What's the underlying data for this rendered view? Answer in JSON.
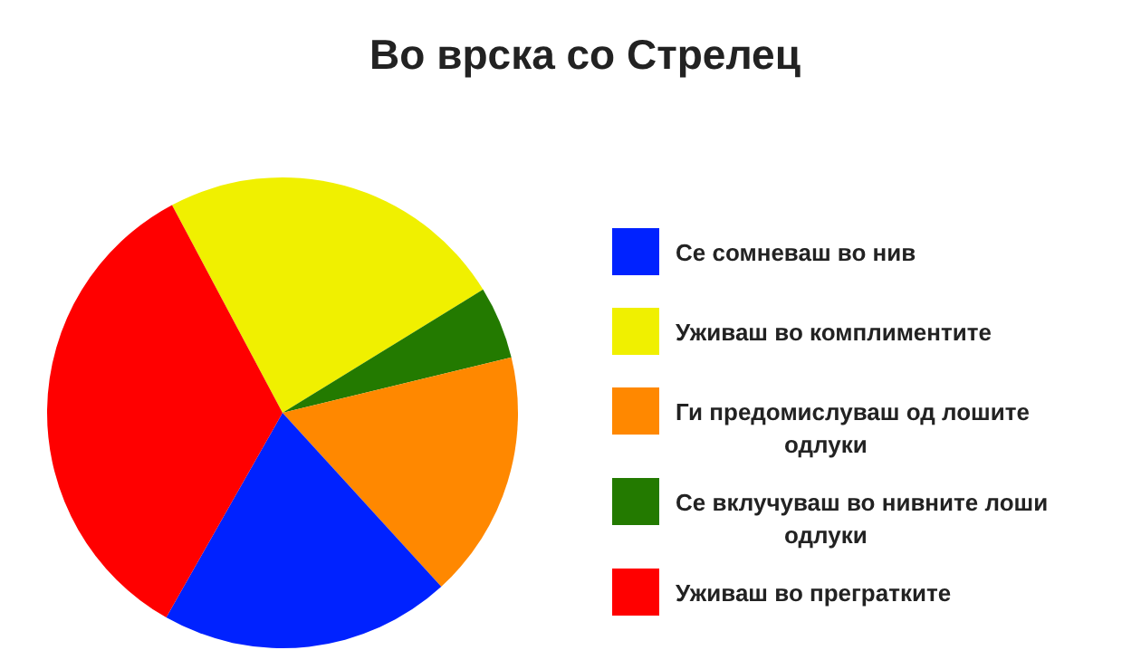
{
  "chart_data": {
    "type": "pie",
    "title": "Во врска со Стрелец",
    "categories": [
      "Уживаш во комплиментите",
      "Се вклучуваш во нивните лоши одлуки",
      "Ги предомислуваш од лошите одлуки",
      "Се сомневаш во нив",
      "Уживаш во прегратките"
    ],
    "values": [
      24,
      5,
      17,
      20,
      34
    ],
    "colors": [
      "#f0f000",
      "#237a00",
      "#ff8800",
      "#0022ff",
      "#ff0000"
    ],
    "legend": "right"
  }
}
